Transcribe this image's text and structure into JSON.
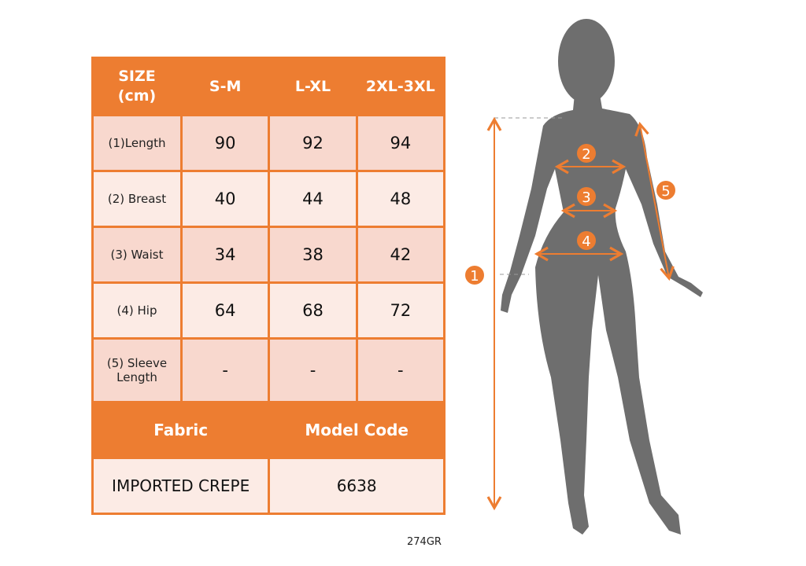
{
  "table": {
    "header": [
      "SIZE\n(cm)",
      "S-M",
      "L-XL",
      "2XL-3XL"
    ],
    "header_size_line1": "SIZE",
    "header_size_line2": "(cm)",
    "sizes": [
      "S-M",
      "L-XL",
      "2XL-3XL"
    ],
    "rows": [
      {
        "label": "(1)Length",
        "values": [
          "90",
          "92",
          "94"
        ]
      },
      {
        "label": "(2) Breast",
        "values": [
          "40",
          "44",
          "48"
        ]
      },
      {
        "label": "(3) Waist",
        "values": [
          "34",
          "38",
          "42"
        ]
      },
      {
        "label": "(4) Hip",
        "values": [
          "64",
          "68",
          "72"
        ]
      },
      {
        "label": "(5) Sleeve Length",
        "label_line1": "(5) Sleeve",
        "label_line2": "Length",
        "values": [
          "-",
          "-",
          "-"
        ]
      }
    ],
    "fabric_label": "Fabric",
    "model_code_label": "Model Code",
    "fabric_value": "IMPORTED CREPE",
    "model_code_value": "6638"
  },
  "footer_code": "274GR",
  "figure": {
    "markers": [
      "1",
      "2",
      "3",
      "4",
      "5"
    ]
  },
  "colors": {
    "accent": "#ED7D31",
    "row_dark": "#F8D8CE",
    "row_light": "#FCEBE5",
    "silhouette": "#6E6E6E"
  }
}
